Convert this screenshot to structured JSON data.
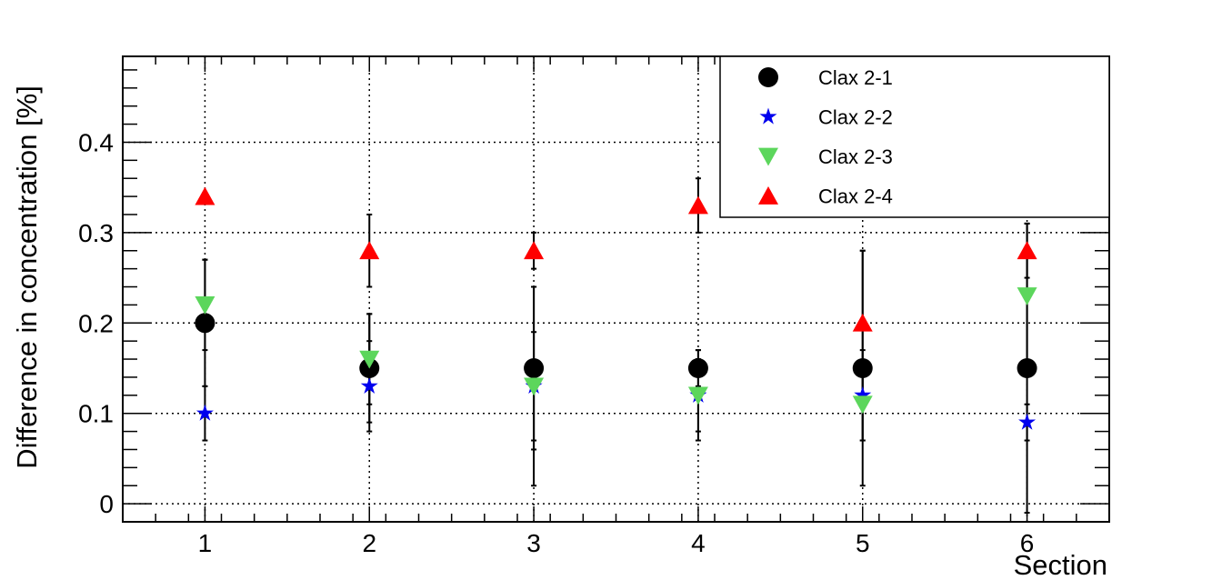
{
  "chart_data": {
    "type": "scatter",
    "xlabel": "Section",
    "ylabel": "Difference in concentration [%]",
    "xlim": [
      0.5,
      6.5
    ],
    "ylim": [
      -0.02,
      0.495
    ],
    "xticks": [
      "1",
      "2",
      "3",
      "4",
      "5",
      "6"
    ],
    "yticks": [
      "0",
      "0.1",
      "0.2",
      "0.3",
      "0.4"
    ],
    "grid": true,
    "legend_position": "top-right",
    "x": [
      1,
      2,
      3,
      4,
      5,
      6
    ],
    "series": [
      {
        "name": "Clax 2-1",
        "marker": "circle",
        "color": "#000000",
        "values": [
          0.2,
          0.15,
          0.15,
          0.15,
          0.15,
          0.15
        ],
        "errors": [
          0.07,
          0.06,
          0.09,
          0.02,
          0.13,
          0.16
        ]
      },
      {
        "name": "Clax 2-2",
        "marker": "star",
        "color": "#0000ee",
        "values": [
          0.1,
          0.13,
          0.13,
          0.12,
          0.12,
          0.09
        ],
        "errors": [
          0.03,
          0.05,
          0.11,
          0.05,
          0.05,
          0.02
        ]
      },
      {
        "name": "Clax 2-3",
        "marker": "triangle-down",
        "color": "#5cd65c",
        "values": [
          0.22,
          0.16,
          0.13,
          0.12,
          0.11,
          0.23
        ],
        "errors": [
          0.05,
          0.05,
          0.06,
          0.04,
          0.04,
          0.08
        ]
      },
      {
        "name": "Clax 2-4",
        "marker": "triangle-up",
        "color": "#ff0000",
        "values": [
          0.34,
          0.28,
          0.28,
          0.33,
          0.2,
          0.28
        ],
        "errors": [
          0.0,
          0.04,
          0.02,
          0.03,
          0.08,
          0.03
        ]
      }
    ]
  }
}
